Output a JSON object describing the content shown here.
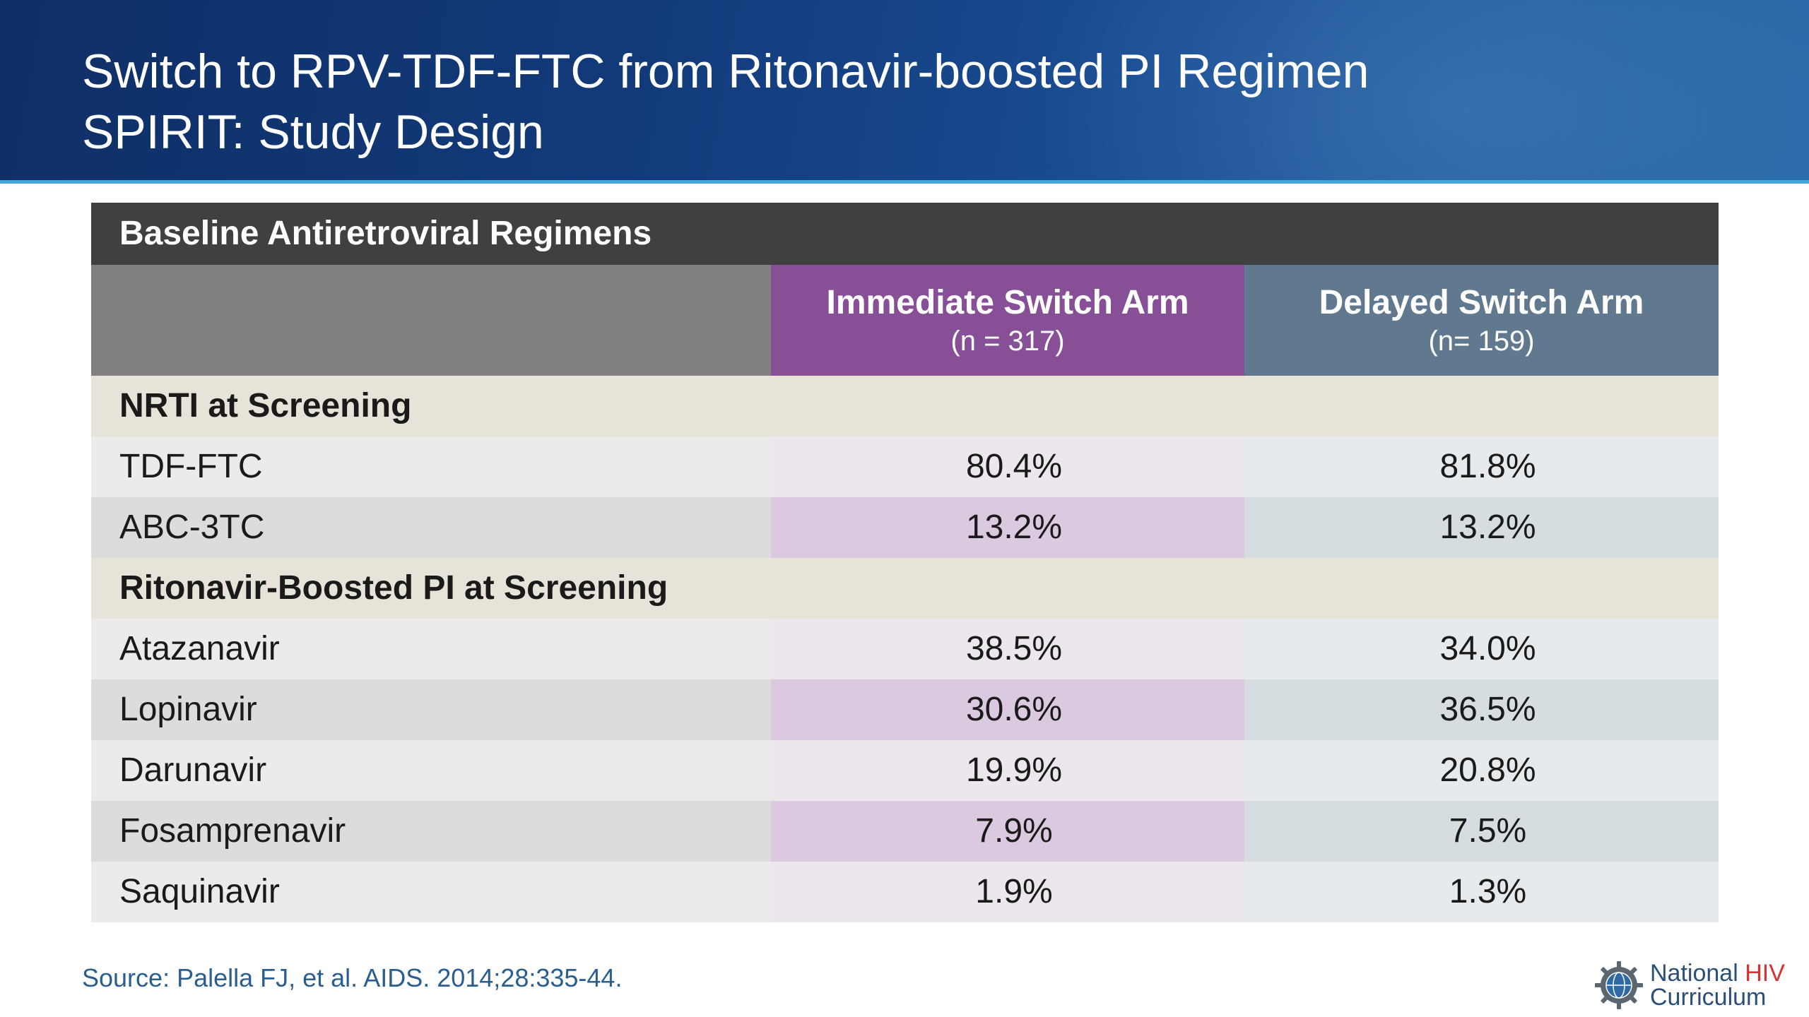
{
  "slide": {
    "title_line1": "Switch to RPV-TDF-FTC from Ritonavir-boosted PI Regimen",
    "title_line2": "SPIRIT: Study Design"
  },
  "table": {
    "header": "Baseline Antiretroviral Regimens",
    "arms": [
      {
        "name": "Immediate Switch Arm",
        "n": "(n = 317)"
      },
      {
        "name": "Delayed Switch Arm",
        "n": "(n= 159)"
      }
    ],
    "sections": [
      {
        "label": "NRTI at Screening",
        "rows": [
          {
            "drug": "TDF-FTC",
            "immediate": "80.4%",
            "delayed": "81.8%"
          },
          {
            "drug": "ABC-3TC",
            "immediate": "13.2%",
            "delayed": "13.2%"
          }
        ]
      },
      {
        "label": "Ritonavir-Boosted PI at Screening",
        "rows": [
          {
            "drug": "Atazanavir",
            "immediate": "38.5%",
            "delayed": "34.0%"
          },
          {
            "drug": "Lopinavir",
            "immediate": "30.6%",
            "delayed": "36.5%"
          },
          {
            "drug": "Darunavir",
            "immediate": "19.9%",
            "delayed": "20.8%"
          },
          {
            "drug": "Fosamprenavir",
            "immediate": "7.9%",
            "delayed": "7.5%"
          },
          {
            "drug": "Saquinavir",
            "immediate": "1.9%",
            "delayed": "1.3%"
          }
        ]
      }
    ]
  },
  "footer": {
    "source": "Source: Palella FJ, et al. AIDS. 2014;28:335-44.",
    "logo_line1_a": "National",
    "logo_line1_b": "HIV",
    "logo_line2": "Curriculum",
    "logo_icon": "gear-globe-icon"
  },
  "colors": {
    "header_bg": "#123a7a",
    "accent_line": "#3fa7dc",
    "immediate_arm": "#864f96",
    "delayed_arm": "#61798f",
    "section_bg": "#e8e3d8"
  }
}
